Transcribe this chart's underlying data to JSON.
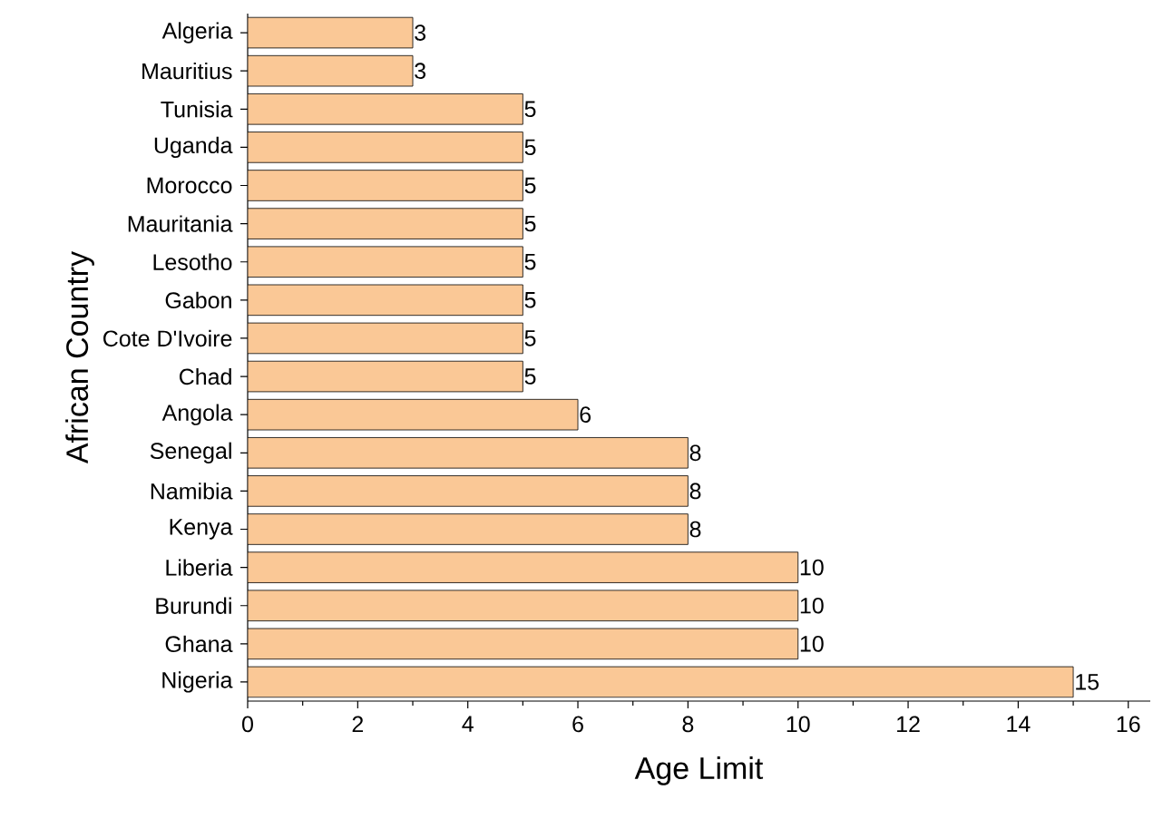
{
  "chart_data": {
    "type": "bar",
    "orientation": "horizontal",
    "xlabel": "Age Limit",
    "ylabel": "African Country",
    "categories": [
      "Algeria",
      "Mauritius",
      "Tunisia",
      "Uganda",
      "Morocco",
      "Mauritania",
      "Lesotho",
      "Gabon",
      "Cote D'Ivoire",
      "Chad",
      "Angola",
      "Senegal",
      "Namibia",
      "Kenya",
      "Liberia",
      "Burundi",
      "Ghana",
      "Nigeria"
    ],
    "values": [
      3,
      3,
      5,
      5,
      5,
      5,
      5,
      5,
      5,
      5,
      6,
      8,
      8,
      8,
      10,
      10,
      10,
      15
    ],
    "color": "#fac896",
    "data_labels": true,
    "xlim": [
      0,
      16.4
    ],
    "xticks": [
      0,
      2,
      4,
      6,
      8,
      10,
      12,
      14,
      16
    ]
  }
}
